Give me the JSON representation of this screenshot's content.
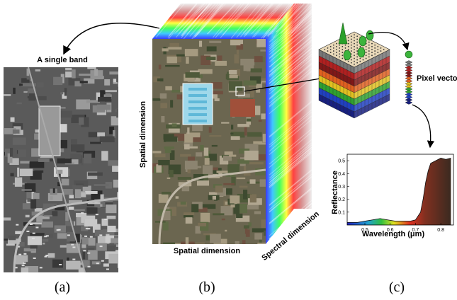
{
  "panel_a": {
    "title": "A single band",
    "caption": "(a)"
  },
  "panel_b": {
    "vertical_axis": "Spatial dimension",
    "horizontal_axis": "Spatial dimension",
    "depth_axis": "Spectral dimension",
    "caption": "(b)"
  },
  "panel_c": {
    "pixel_label": "Pixel vector",
    "caption": "(c)",
    "chart_data": {
      "type": "area",
      "x_label": "Wavelength (μm)",
      "y_label": "Reflectance",
      "x": [
        0.43,
        0.47,
        0.5,
        0.53,
        0.56,
        0.59,
        0.62,
        0.65,
        0.68,
        0.7,
        0.72,
        0.73,
        0.74,
        0.75,
        0.76,
        0.78,
        0.8,
        0.82,
        0.84
      ],
      "values": [
        0.02,
        0.02,
        0.03,
        0.04,
        0.05,
        0.04,
        0.03,
        0.03,
        0.03,
        0.04,
        0.1,
        0.2,
        0.33,
        0.42,
        0.48,
        0.5,
        0.52,
        0.51,
        0.52
      ],
      "xlim": [
        0.43,
        0.85
      ],
      "ylim": [
        0,
        0.55
      ],
      "xticks": [
        0.5,
        0.6,
        0.7,
        0.8
      ],
      "yticks": [
        0.1,
        0.2,
        0.3,
        0.4,
        0.5
      ]
    }
  }
}
